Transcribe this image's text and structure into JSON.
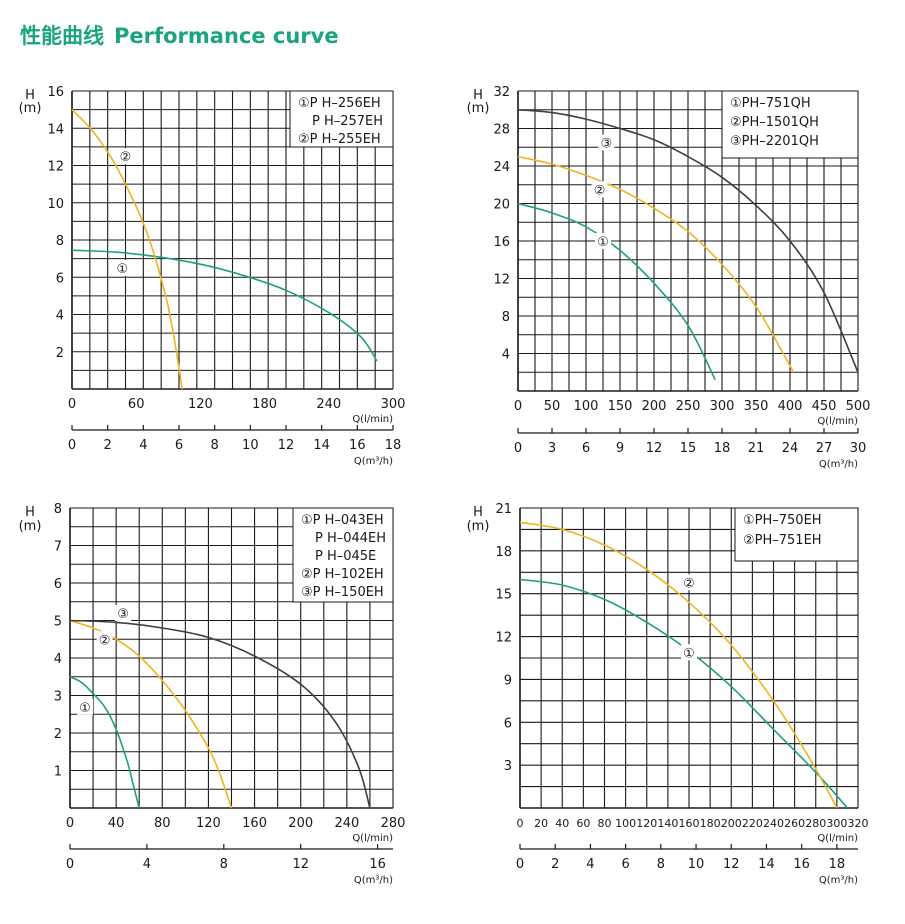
{
  "page": {
    "title_cn": "性能曲线",
    "title_en": "Performance curve"
  },
  "colors": {
    "title": "#1aa57f",
    "series_1": "#1f9e86",
    "series_2": "#f0b323",
    "series_3": "#3f3f3f",
    "grid": "#1a1a1a"
  },
  "chart_data": [
    {
      "type": "line",
      "ylabel": "H",
      "yunit": "(m)",
      "ylim": [
        0,
        16
      ],
      "yticks": [
        2,
        4,
        6,
        8,
        10,
        12,
        14,
        16
      ],
      "x_unit": "Q(l/min)",
      "xlim": [
        0,
        300
      ],
      "xticks": [
        0,
        60,
        120,
        180,
        240,
        300
      ],
      "x2_unit": "Q(m³/h)",
      "x2lim": [
        0,
        18
      ],
      "x2ticks": [
        0,
        2,
        4,
        6,
        8,
        10,
        12,
        14,
        16,
        18
      ],
      "legend": [
        "①P H–256EH",
        "P H–257EH",
        "②P H–255EH"
      ],
      "legend_position": "top-right",
      "series": [
        {
          "marker": "①",
          "color": "series_1",
          "x": [
            0,
            40,
            80,
            120,
            160,
            200,
            240,
            270,
            285
          ],
          "y": [
            7.45,
            7.35,
            7.1,
            6.7,
            6.1,
            5.3,
            4.1,
            2.8,
            1.5
          ],
          "label_at": [
            47,
            6.5
          ]
        },
        {
          "marker": "②",
          "color": "series_2",
          "x": [
            0,
            20,
            40,
            60,
            70,
            80,
            90,
            97,
            103
          ],
          "y": [
            15,
            13.8,
            12.1,
            9.8,
            8.4,
            6.6,
            4.4,
            2.2,
            0
          ],
          "label_at": [
            50,
            12.5
          ]
        }
      ]
    },
    {
      "type": "line",
      "ylabel": "H",
      "yunit": "(m)",
      "ylim": [
        0,
        32
      ],
      "yticks": [
        4,
        8,
        12,
        16,
        20,
        24,
        28,
        32
      ],
      "x_unit": "Q(l/min)",
      "xlim": [
        0,
        500
      ],
      "xticks": [
        0,
        50,
        100,
        150,
        200,
        250,
        300,
        350,
        400,
        450,
        500
      ],
      "x2_unit": "Q(m³/h)",
      "x2lim": [
        0,
        30
      ],
      "x2ticks": [
        0,
        3,
        6,
        9,
        12,
        15,
        18,
        21,
        24,
        27,
        30
      ],
      "legend": [
        "①PH–751QH",
        "②PH–1501QH",
        "③PH–2201QH"
      ],
      "legend_position": "top-right",
      "series": [
        {
          "marker": "①",
          "color": "series_1",
          "x": [
            0,
            50,
            100,
            150,
            200,
            250,
            290
          ],
          "y": [
            20,
            19,
            17.5,
            15,
            11.5,
            7,
            1.2
          ],
          "label_at": [
            125,
            16
          ]
        },
        {
          "marker": "②",
          "color": "series_2",
          "x": [
            0,
            50,
            100,
            150,
            200,
            250,
            300,
            350,
            390,
            405
          ],
          "y": [
            25,
            24.2,
            23,
            21.5,
            19.5,
            17,
            13.5,
            9,
            4,
            2
          ],
          "label_at": [
            120,
            21.5
          ]
        },
        {
          "marker": "③",
          "color": "series_3",
          "x": [
            0,
            50,
            100,
            150,
            200,
            250,
            300,
            350,
            400,
            450,
            500
          ],
          "y": [
            30,
            29.7,
            29,
            28,
            26.8,
            25,
            22.8,
            19.8,
            16,
            10.5,
            2
          ],
          "label_at": [
            130,
            26.5
          ]
        }
      ]
    },
    {
      "type": "line",
      "ylabel": "H",
      "yunit": "(m)",
      "ylim": [
        0,
        8
      ],
      "yticks": [
        1,
        2,
        3,
        4,
        5,
        6,
        7,
        8
      ],
      "x_unit": "Q(l/min)",
      "xlim": [
        0,
        280
      ],
      "xticks": [
        0,
        40,
        80,
        120,
        160,
        200,
        240,
        280
      ],
      "x2_unit": "Q(m³/h)",
      "x2lim": [
        0,
        16.8
      ],
      "x2ticks": [
        0,
        4,
        8,
        12,
        16
      ],
      "legend": [
        "①P H–043EH",
        "P H–044EH",
        "P H–045E",
        "②P H–102EH",
        "③P H–150EH"
      ],
      "legend_position": "top-right",
      "series": [
        {
          "marker": "①",
          "color": "series_1",
          "x": [
            0,
            10,
            20,
            30,
            40,
            50,
            55,
            60
          ],
          "y": [
            3.5,
            3.35,
            3.05,
            2.7,
            2.1,
            1.2,
            0.6,
            0
          ],
          "label_at": [
            13,
            2.7
          ]
        },
        {
          "marker": "②",
          "color": "series_2",
          "x": [
            0,
            20,
            40,
            60,
            80,
            100,
            120,
            130,
            140
          ],
          "y": [
            5,
            4.8,
            4.5,
            4.05,
            3.4,
            2.6,
            1.6,
            0.9,
            0
          ],
          "label_at": [
            30,
            4.5
          ]
        },
        {
          "marker": "③",
          "color": "series_3",
          "x": [
            0,
            40,
            80,
            120,
            160,
            200,
            230,
            250,
            260
          ],
          "y": [
            5,
            4.95,
            4.8,
            4.55,
            4.05,
            3.3,
            2.3,
            1.1,
            0
          ],
          "label_at": [
            46,
            5.2
          ]
        }
      ]
    },
    {
      "type": "line",
      "ylabel": "H",
      "yunit": "(m)",
      "ylim": [
        0,
        21
      ],
      "yticks": [
        3,
        6,
        9,
        12,
        15,
        18,
        21
      ],
      "x_unit": "Q(l/min)",
      "xlim": [
        0,
        320
      ],
      "xticks": [
        0,
        20,
        40,
        60,
        80,
        100,
        120,
        140,
        160,
        180,
        200,
        220,
        240,
        260,
        280,
        300,
        320
      ],
      "x2_unit": "Q(m³/h)",
      "x2lim": [
        0,
        19.2
      ],
      "x2ticks": [
        0,
        2,
        4,
        6,
        8,
        10,
        12,
        14,
        16,
        18
      ],
      "legend": [
        "①PH–750EH",
        "②PH–751EH"
      ],
      "legend_position": "top-right",
      "series": [
        {
          "marker": "①",
          "color": "series_1",
          "x": [
            0,
            40,
            80,
            120,
            160,
            200,
            240,
            280,
            310
          ],
          "y": [
            16,
            15.6,
            14.6,
            13,
            11,
            8.5,
            5.5,
            2.5,
            0
          ],
          "label_at": [
            160,
            10.9
          ]
        },
        {
          "marker": "②",
          "color": "series_2",
          "x": [
            0,
            40,
            80,
            120,
            160,
            200,
            240,
            270,
            290,
            300
          ],
          "y": [
            20,
            19.5,
            18.4,
            16.7,
            14.4,
            11.4,
            7.5,
            4,
            1.4,
            0
          ],
          "label_at": [
            160,
            15.8
          ]
        }
      ]
    }
  ]
}
